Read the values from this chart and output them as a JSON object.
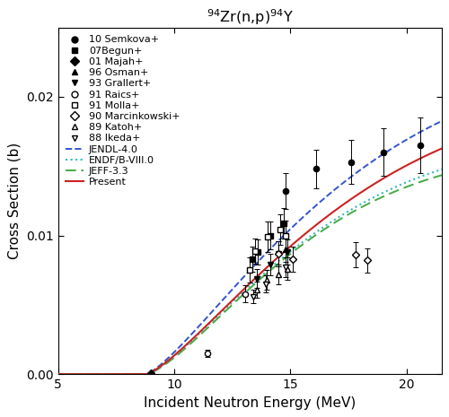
{
  "title": "$^{94}$Zr(n,p)$^{94}$Y",
  "xlabel": "Incident Neutron Energy (MeV)",
  "ylabel": "Cross Section (b)",
  "xlim": [
    5,
    21.5
  ],
  "ylim": [
    0,
    0.025
  ],
  "yticks": [
    0,
    0.01,
    0.02
  ],
  "xticks": [
    5,
    10,
    15,
    20
  ],
  "semkova": {
    "x": [
      14.8,
      16.1,
      17.6,
      19.0,
      20.6
    ],
    "y": [
      0.0132,
      0.0148,
      0.0153,
      0.016,
      0.0165
    ],
    "yerr": [
      0.0013,
      0.0014,
      0.0016,
      0.0017,
      0.002
    ],
    "label": "10 Semkova+"
  },
  "begun": {
    "x": [
      13.35,
      13.58,
      14.13,
      14.71
    ],
    "y": [
      0.0083,
      0.0088,
      0.01,
      0.0109
    ],
    "yerr": [
      0.0009,
      0.0009,
      0.001,
      0.0011
    ],
    "label": "07Begun+"
  },
  "majah": {
    "x": [
      9.0
    ],
    "y": [
      0.0001
    ],
    "yerr": [
      2e-05
    ],
    "label": "01 Majah+"
  },
  "osman": {
    "x": [
      14.8
    ],
    "y": [
      0.009
    ],
    "yerr": [
      0.0009
    ],
    "label": "96 Osman+"
  },
  "grallert": {
    "x": [
      13.55,
      14.14,
      14.48,
      14.88
    ],
    "y": [
      0.0069,
      0.0079,
      0.0087,
      0.0088
    ],
    "yerr": [
      0.0007,
      0.0008,
      0.0009,
      0.0009
    ],
    "label": "93 Grallert+"
  },
  "raics": {
    "x": [
      11.45,
      13.05
    ],
    "y": [
      0.0015,
      0.0058
    ],
    "yerr": [
      0.00025,
      0.0006
    ],
    "label": "91 Raics+"
  },
  "molla": {
    "x": [
      13.24,
      13.47,
      14.03,
      14.57,
      14.78
    ],
    "y": [
      0.0075,
      0.0089,
      0.0099,
      0.0104,
      0.01
    ],
    "yerr": [
      0.0009,
      0.0009,
      0.0011,
      0.0011,
      0.0011
    ],
    "label": "91 Molla+"
  },
  "marcinkowski": {
    "x": [
      14.5,
      15.1,
      17.8,
      18.3
    ],
    "y": [
      0.0087,
      0.0083,
      0.0086,
      0.0082
    ],
    "yerr": [
      0.0009,
      0.0009,
      0.0009,
      0.0009
    ],
    "label": "90 Marcinkowski+"
  },
  "katoh": {
    "x": [
      13.57,
      13.99,
      14.49,
      14.85
    ],
    "y": [
      0.0061,
      0.0068,
      0.0072,
      0.0076
    ],
    "yerr": [
      0.0006,
      0.0007,
      0.0007,
      0.0008
    ],
    "label": "89 Katoh+"
  },
  "ikeda": {
    "x": [
      13.4,
      13.93,
      14.78
    ],
    "y": [
      0.0056,
      0.0065,
      0.0077
    ],
    "yerr": [
      0.0005,
      0.0006,
      0.0007
    ],
    "label": "88 Ikeda+"
  },
  "jendl_color": "#3355cc",
  "endf_color": "#33bbbb",
  "jeff_color": "#44aa44",
  "present_color": "#cc2222",
  "legend_fontsize": 8.0,
  "tick_fontsize": 10,
  "label_fontsize": 11
}
